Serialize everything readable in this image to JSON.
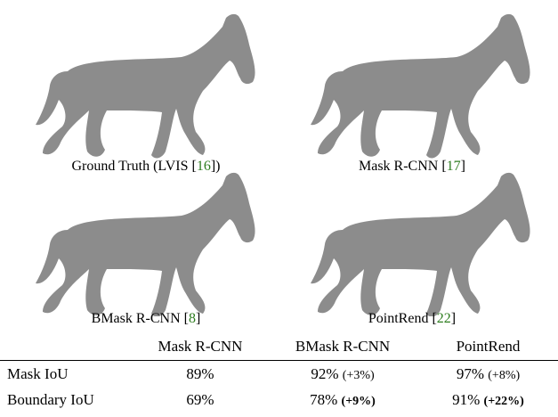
{
  "panels": [
    {
      "caption": "Ground Truth (LVIS ",
      "cite": "16",
      "close": ")"
    },
    {
      "caption": "Mask R-CNN ",
      "cite": "17",
      "close": ""
    },
    {
      "caption": "BMask R-CNN ",
      "cite": "8",
      "close": ""
    },
    {
      "caption": "PointRend ",
      "cite": "22",
      "close": ""
    }
  ],
  "table": {
    "columns": [
      "Mask R-CNN",
      "BMask R-CNN",
      "PointRend"
    ],
    "rows": [
      {
        "label": "Mask IoU",
        "values": [
          "89%",
          "92%",
          "97%"
        ],
        "deltas": [
          "",
          "(+3%)",
          "(+8%)"
        ]
      },
      {
        "label": "Boundary IoU",
        "values": [
          "69%",
          "78%",
          "91%"
        ],
        "deltas": [
          "",
          "(+9%)",
          "(+22%)"
        ]
      }
    ]
  },
  "colors": {
    "mask": "#8c8c8c",
    "citation": "#2e7d1f"
  }
}
